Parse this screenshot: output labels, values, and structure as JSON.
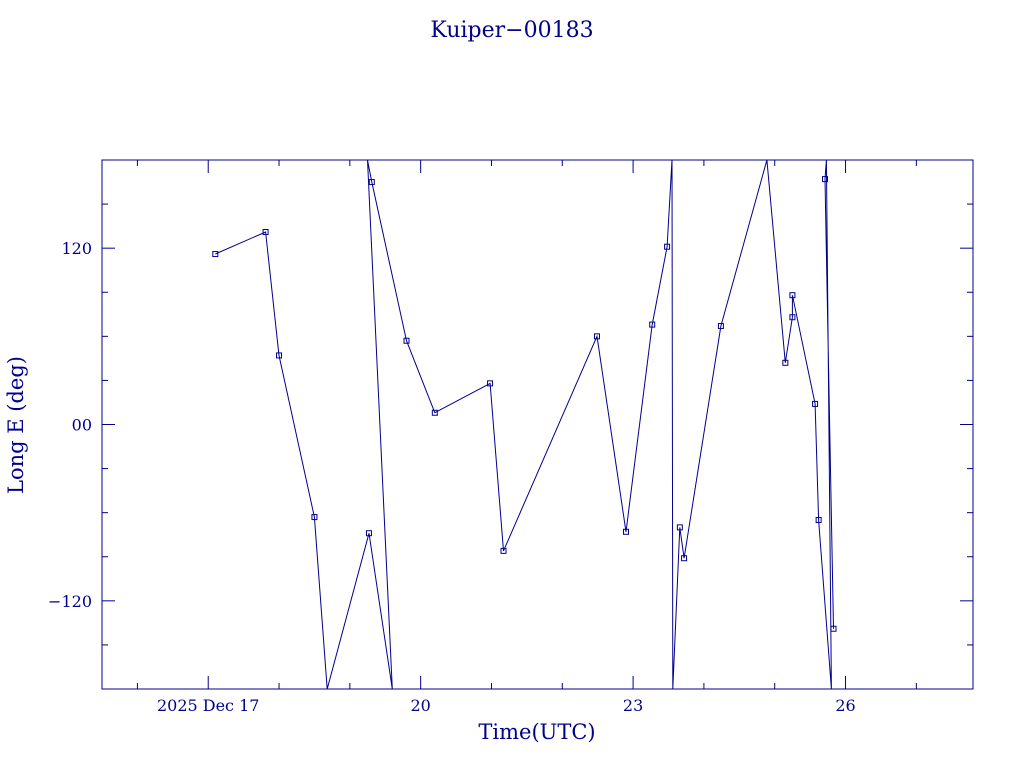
{
  "chart_data": {
    "type": "line",
    "title": "Kuiper−00183",
    "xlabel": "Time(UTC)",
    "ylabel": "Long E (deg)",
    "color": "#00008b",
    "xlim": [
      15.5,
      27.8
    ],
    "ylim": [
      -180,
      180
    ],
    "x_ticks": [
      {
        "x": 17,
        "label": "2025 Dec 17"
      },
      {
        "x": 20,
        "label": "20"
      },
      {
        "x": 23,
        "label": "23"
      },
      {
        "x": 26,
        "label": "26"
      }
    ],
    "y_ticks": [
      {
        "y": 120,
        "label": "120"
      },
      {
        "y": 0,
        "label": "00"
      },
      {
        "y": -120,
        "label": "−120"
      }
    ],
    "grid": false,
    "series": [
      {
        "values": [
          {
            "x": 17.1,
            "y": 116
          },
          {
            "x": 17.81,
            "y": 131
          },
          {
            "x": 18.0,
            "y": 47
          },
          {
            "x": 18.5,
            "y": -63
          },
          {
            "x": 18.68,
            "y": -180
          },
          {
            "x": 19.27,
            "y": -74
          },
          {
            "x": 19.6,
            "y": -180
          },
          {
            "x": 19.25,
            "y": 180
          },
          {
            "x": 19.31,
            "y": 165
          },
          {
            "x": 19.8,
            "y": 57
          },
          {
            "x": 20.2,
            "y": 8
          },
          {
            "x": 20.98,
            "y": 28
          },
          {
            "x": 21.17,
            "y": -86
          },
          {
            "x": 22.49,
            "y": 60
          },
          {
            "x": 22.9,
            "y": -73
          },
          {
            "x": 23.27,
            "y": 68
          },
          {
            "x": 23.48,
            "y": 121
          },
          {
            "x": 23.55,
            "y": 180
          },
          {
            "x": 23.56,
            "y": -180
          },
          {
            "x": 23.66,
            "y": -70
          },
          {
            "x": 23.72,
            "y": -91
          },
          {
            "x": 24.24,
            "y": 67
          },
          {
            "x": 24.89,
            "y": 180
          },
          {
            "x": 25.15,
            "y": 42
          },
          {
            "x": 25.25,
            "y": 73
          },
          {
            "x": 25.25,
            "y": 88
          },
          {
            "x": 25.57,
            "y": 14
          },
          {
            "x": 25.62,
            "y": -65
          },
          {
            "x": 25.8,
            "y": -180
          },
          {
            "x": 25.73,
            "y": 180
          },
          {
            "x": 25.71,
            "y": 167
          },
          {
            "x": 25.83,
            "y": -139
          }
        ]
      }
    ]
  }
}
